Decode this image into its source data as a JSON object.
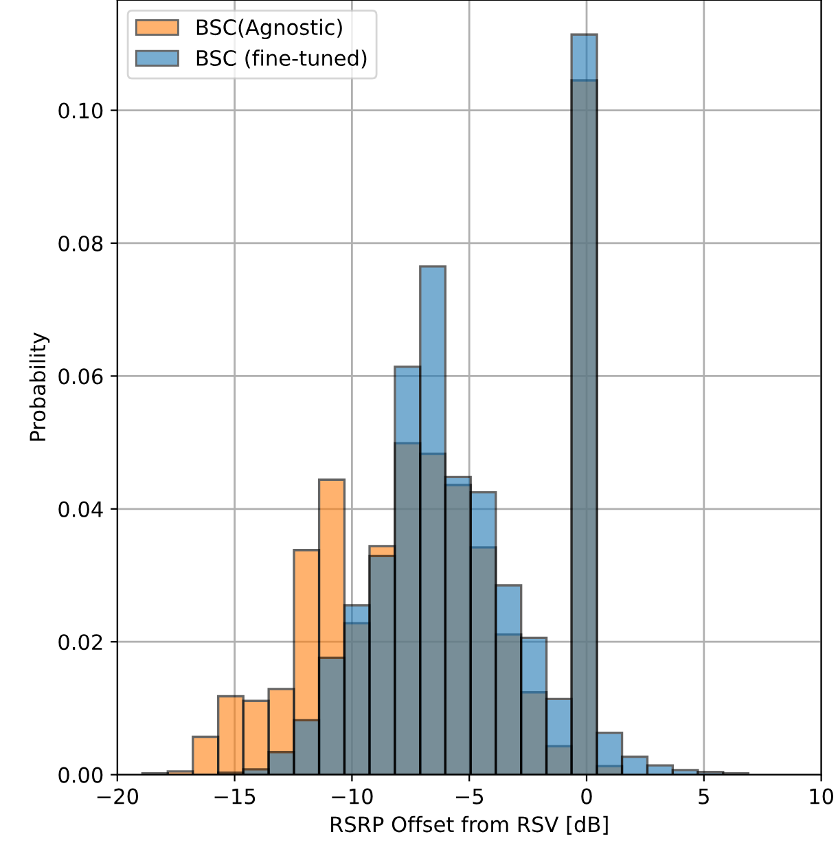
{
  "chart_data": {
    "type": "histogram",
    "xlabel": "RSRP Offset from RSV [dB]",
    "ylabel": "Probability",
    "bins": [
      -18.93,
      -17.85,
      -16.78,
      -15.7,
      -14.63,
      -13.55,
      -12.47,
      -11.4,
      -10.32,
      -9.25,
      -8.17,
      -7.09,
      -6.02,
      -4.94,
      -3.87,
      -2.79,
      -1.71,
      -0.64,
      0.44,
      1.51,
      2.59,
      3.67,
      4.74,
      5.82,
      6.89
    ],
    "series": [
      {
        "name": "BSC(Agnostic)",
        "color": "#ff7f0e",
        "values": [
          0.0002,
          0.0005,
          0.0057,
          0.0118,
          0.0111,
          0.0129,
          0.0338,
          0.0444,
          0.0228,
          0.0344,
          0.0499,
          0.0483,
          0.0436,
          0.0342,
          0.0211,
          0.0124,
          0.0043,
          0.1045,
          0.0013,
          null,
          null,
          null,
          null,
          0.0
        ]
      },
      {
        "name": "BSC (fine-tuned)",
        "color": "#1f77b4",
        "values": [
          0.0,
          0.0,
          0.0,
          0.0003,
          0.0008,
          0.0034,
          0.0082,
          0.0176,
          0.0255,
          0.0329,
          0.0614,
          0.0765,
          0.0448,
          0.0425,
          0.0285,
          0.0206,
          0.0114,
          0.1114,
          0.0063,
          0.0027,
          0.0014,
          0.0007,
          0.0004,
          0.0002
        ]
      }
    ],
    "xlim": [
      -20,
      10
    ],
    "xticks": [
      {
        "value": -20,
        "label": "−20"
      },
      {
        "value": -15,
        "label": "−15"
      },
      {
        "value": -10,
        "label": "−10"
      },
      {
        "value": -5,
        "label": "−5"
      },
      0,
      5,
      10
    ],
    "ylim": [
      0,
      0.1166
    ],
    "yticks": [
      {
        "value": 0,
        "label": "0.00"
      },
      {
        "value": 0.02,
        "label": "0.02"
      },
      {
        "value": 0.04,
        "label": "0.04"
      },
      {
        "value": 0.06,
        "label": "0.06"
      },
      {
        "value": 0.08,
        "label": "0.08"
      },
      {
        "value": 0.1,
        "label": "0.10"
      }
    ],
    "grid": true,
    "legend": "top left"
  }
}
